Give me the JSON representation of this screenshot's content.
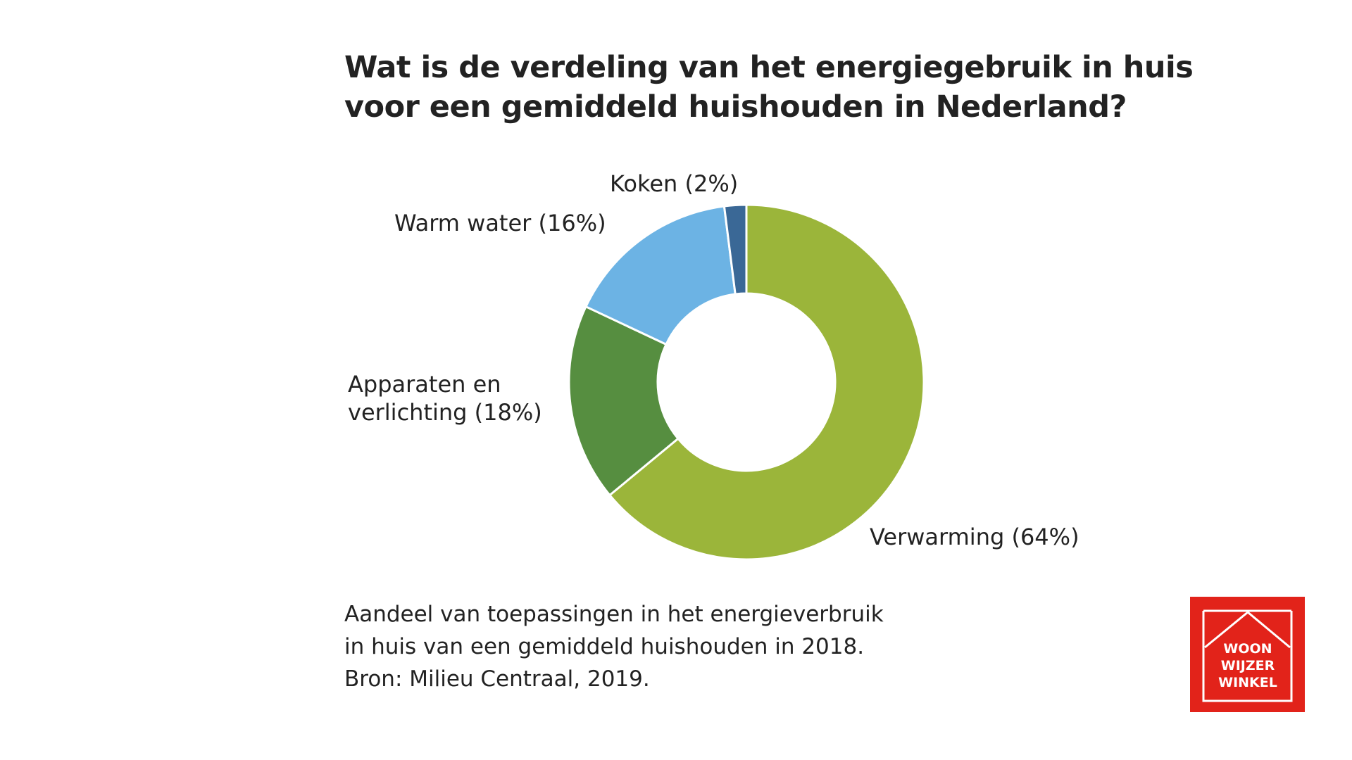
{
  "chart_data": {
    "type": "pie",
    "variant": "donut",
    "title": "Wat is de verdeling van het energiegebruik in huis voor een gemiddeld huishouden in Nederland?",
    "title_lines": [
      "Wat is de verdeling van het energiegebruik in huis",
      "voor een gemiddeld huishouden in Nederland?"
    ],
    "slices": [
      {
        "name": "Verwarming",
        "value": 64,
        "label": "Verwarming (64%)",
        "color": "#9bb53a"
      },
      {
        "name": "Apparaten en verlichting",
        "value": 18,
        "label_lines": [
          "Apparaten en",
          "verlichting (18%)"
        ],
        "color": "#568e40"
      },
      {
        "name": "Warm water",
        "value": 16,
        "label": "Warm water (16%)",
        "color": "#6cb3e4"
      },
      {
        "name": "Koken",
        "value": 2,
        "label": "Koken (2%)",
        "color": "#3a6896"
      }
    ],
    "caption_lines": [
      "Aandeel van toepassingen in het energieverbruik",
      "in huis van een gemiddeld huishouden in 2018.",
      "Bron: Milieu Centraal, 2019."
    ]
  },
  "logo": {
    "lines": [
      "WOON",
      "WIJZER",
      "WINKEL"
    ],
    "color": "#e2231a"
  }
}
